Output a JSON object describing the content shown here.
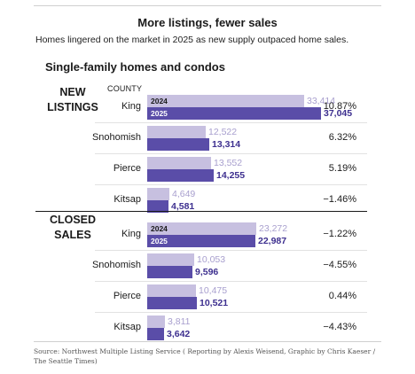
{
  "title": "More listings, fewer sales",
  "subtitle": "Homes lingered on the market in 2025 as new supply outpaced home sales.",
  "section_title": "Single-family homes and condos",
  "county_header": "COUNTY",
  "source": "Source: Northwest Multiple Listing Service ( Reporting by Alexis Weisend, Graphic by Chris Kaeser / The Seattle Times)",
  "colors": {
    "y2024": "#c7c0e0",
    "y2025": "#5a4da8"
  },
  "chart_data": {
    "type": "bar",
    "orientation": "horizontal",
    "title": "More listings, fewer sales",
    "subtitle": "Homes lingered on the market in 2025 as new supply outpaced home sales.",
    "series_names": [
      "2024",
      "2025"
    ],
    "groups": [
      {
        "label_lines": [
          "NEW",
          "LISTINGS"
        ],
        "rows": [
          {
            "county": "King",
            "v2024": 33414,
            "v2025": 37045,
            "v2024_label": "33,414",
            "v2025_label": "37,045",
            "change": "10.87%"
          },
          {
            "county": "Snohomish",
            "v2024": 12522,
            "v2025": 13314,
            "v2024_label": "12,522",
            "v2025_label": "13,314",
            "change": "6.32%"
          },
          {
            "county": "Pierce",
            "v2024": 13552,
            "v2025": 14255,
            "v2024_label": "13,552",
            "v2025_label": "14,255",
            "change": "5.19%"
          },
          {
            "county": "Kitsap",
            "v2024": 4649,
            "v2025": 4581,
            "v2024_label": "4,649",
            "v2025_label": "4,581",
            "change": "−1.46%"
          }
        ]
      },
      {
        "label_lines": [
          "CLOSED",
          "SALES"
        ],
        "rows": [
          {
            "county": "King",
            "v2024": 23272,
            "v2025": 22987,
            "v2024_label": "23,272",
            "v2025_label": "22,987",
            "change": "−1.22%"
          },
          {
            "county": "Snohomish",
            "v2024": 10053,
            "v2025": 9596,
            "v2024_label": "10,053",
            "v2025_label": "9,596",
            "change": "−4.55%"
          },
          {
            "county": "Pierce",
            "v2024": 10475,
            "v2025": 10521,
            "v2024_label": "10,475",
            "v2025_label": "10,521",
            "change": "0.44%"
          },
          {
            "county": "Kitsap",
            "v2024": 3811,
            "v2025": 3642,
            "v2024_label": "3,811",
            "v2025_label": "3,642",
            "change": "−4.43%"
          }
        ]
      }
    ],
    "xlim": [
      0,
      37045
    ],
    "grid": false,
    "legend": "inline-in-first-row"
  }
}
